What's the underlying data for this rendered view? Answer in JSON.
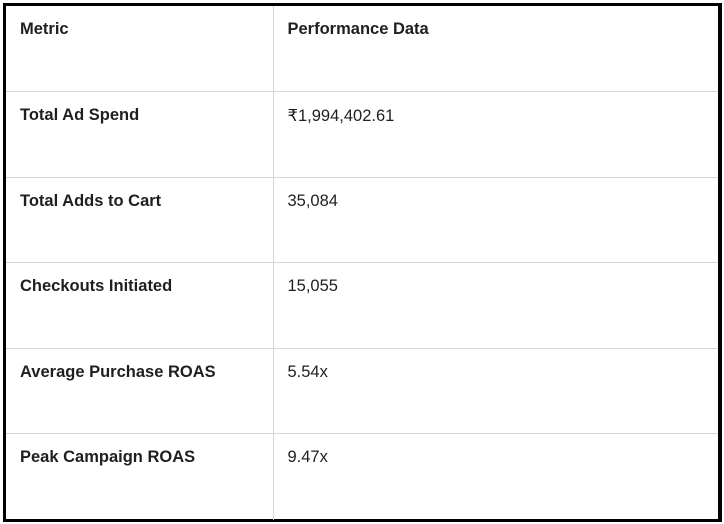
{
  "table": {
    "headers": [
      "Metric",
      "Performance Data"
    ],
    "rows": [
      [
        "Total Ad Spend",
        "₹1,994,402.61"
      ],
      [
        "Total Adds to Cart",
        "35,084"
      ],
      [
        "Checkouts Initiated",
        "15,055"
      ],
      [
        "Average Purchase ROAS",
        "5.54x"
      ],
      [
        "Peak Campaign ROAS",
        "9.47x"
      ]
    ]
  },
  "colors": {
    "frame_border": "#000000",
    "grid_line": "#d6d6d6",
    "text": "#1f1f1f"
  }
}
